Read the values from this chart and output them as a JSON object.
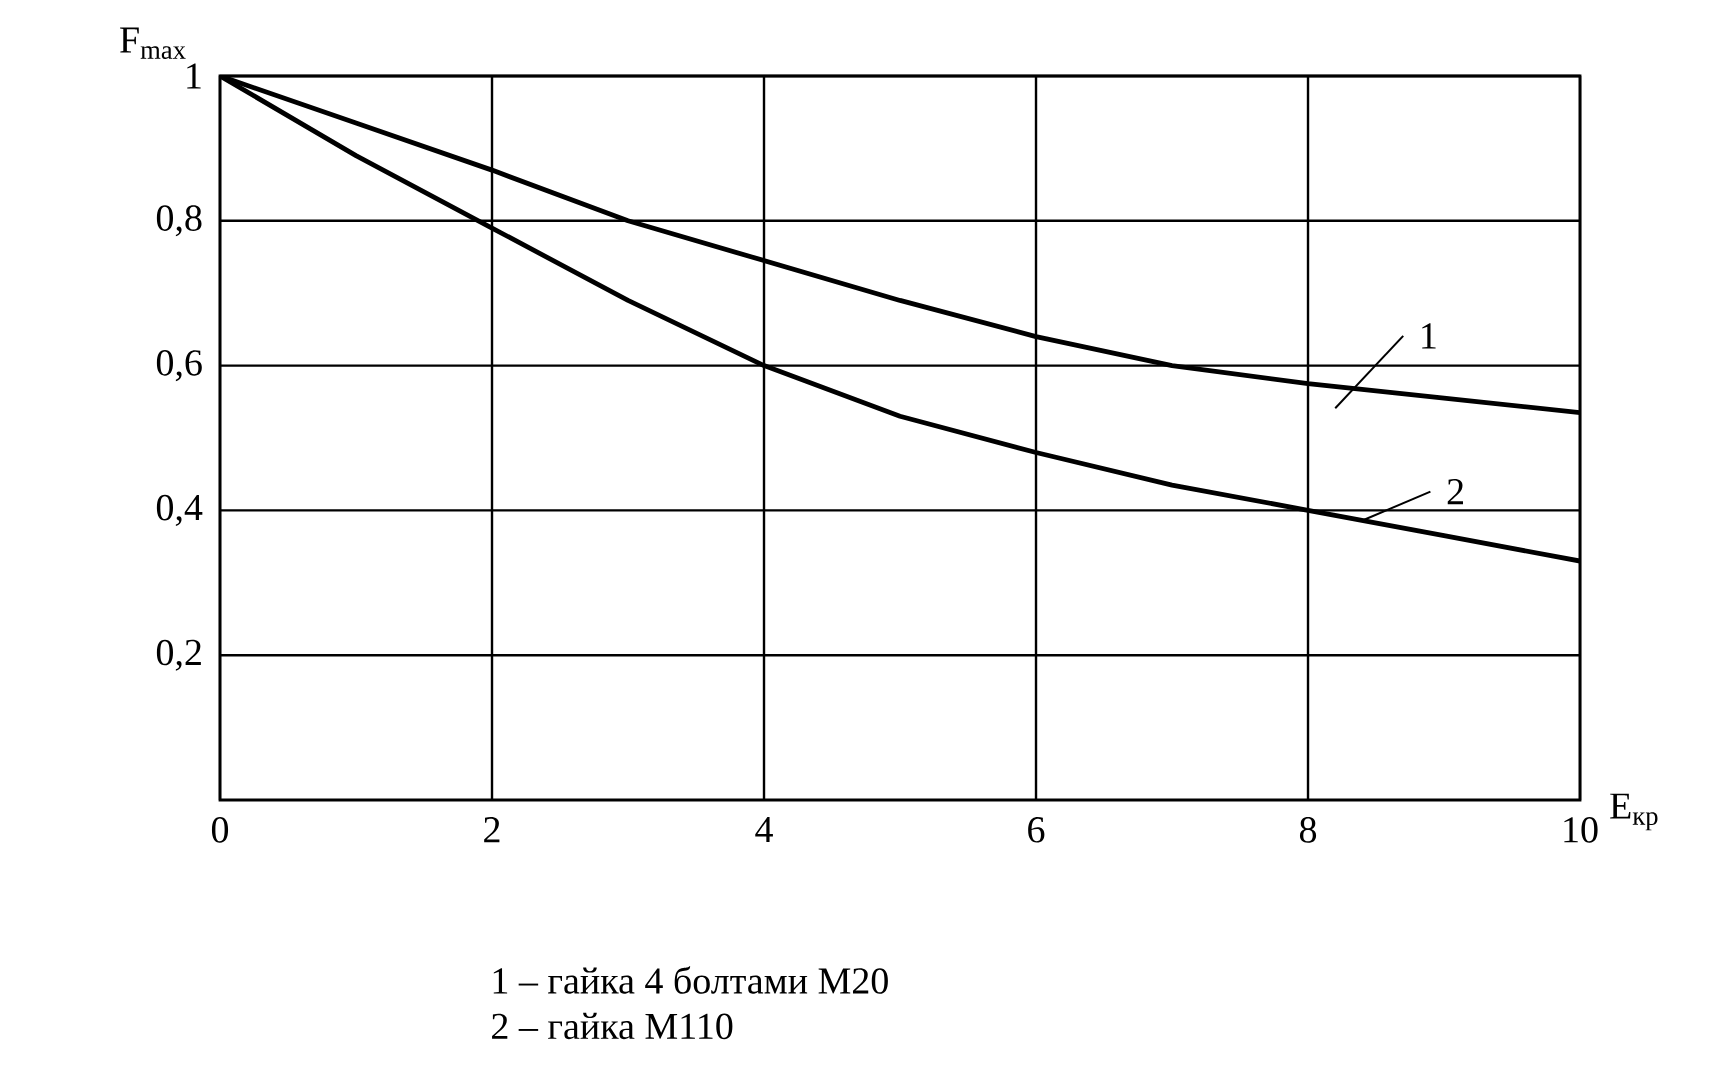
{
  "chart_data": {
    "type": "line",
    "xlabel": "E$_{кр}$",
    "ylabel": "F$_{max}$",
    "x": [
      0,
      1,
      2,
      3,
      4,
      5,
      6,
      7,
      8,
      9,
      10
    ],
    "series": [
      {
        "name": "1",
        "color": "#000000",
        "values": [
          1,
          0.935,
          0.87,
          0.8,
          0.745,
          0.69,
          0.64,
          0.6,
          0.575,
          0.555,
          0.535
        ]
      },
      {
        "name": "2",
        "color": "#000000",
        "values": [
          1,
          0.89,
          0.79,
          0.69,
          0.6,
          0.53,
          0.48,
          0.435,
          0.4,
          0.365,
          0.33
        ]
      }
    ],
    "xlim": [
      0,
      10
    ],
    "ylim": [
      0,
      1
    ],
    "xticks": [
      0,
      2,
      4,
      6,
      8,
      10
    ],
    "yticks": [
      {
        "value": 0.2,
        "label": "0,2"
      },
      {
        "value": 0.4,
        "label": "0,4"
      },
      {
        "value": 0.6,
        "label": "0,6"
      },
      {
        "value": 0.8,
        "label": "0,8"
      },
      {
        "value": 1,
        "label": "1"
      }
    ],
    "grid": true,
    "marker": "none",
    "line_style": "solid",
    "annotations": [
      "1 – гайка 4 болтами М20",
      "2 – гайка М110"
    ]
  }
}
